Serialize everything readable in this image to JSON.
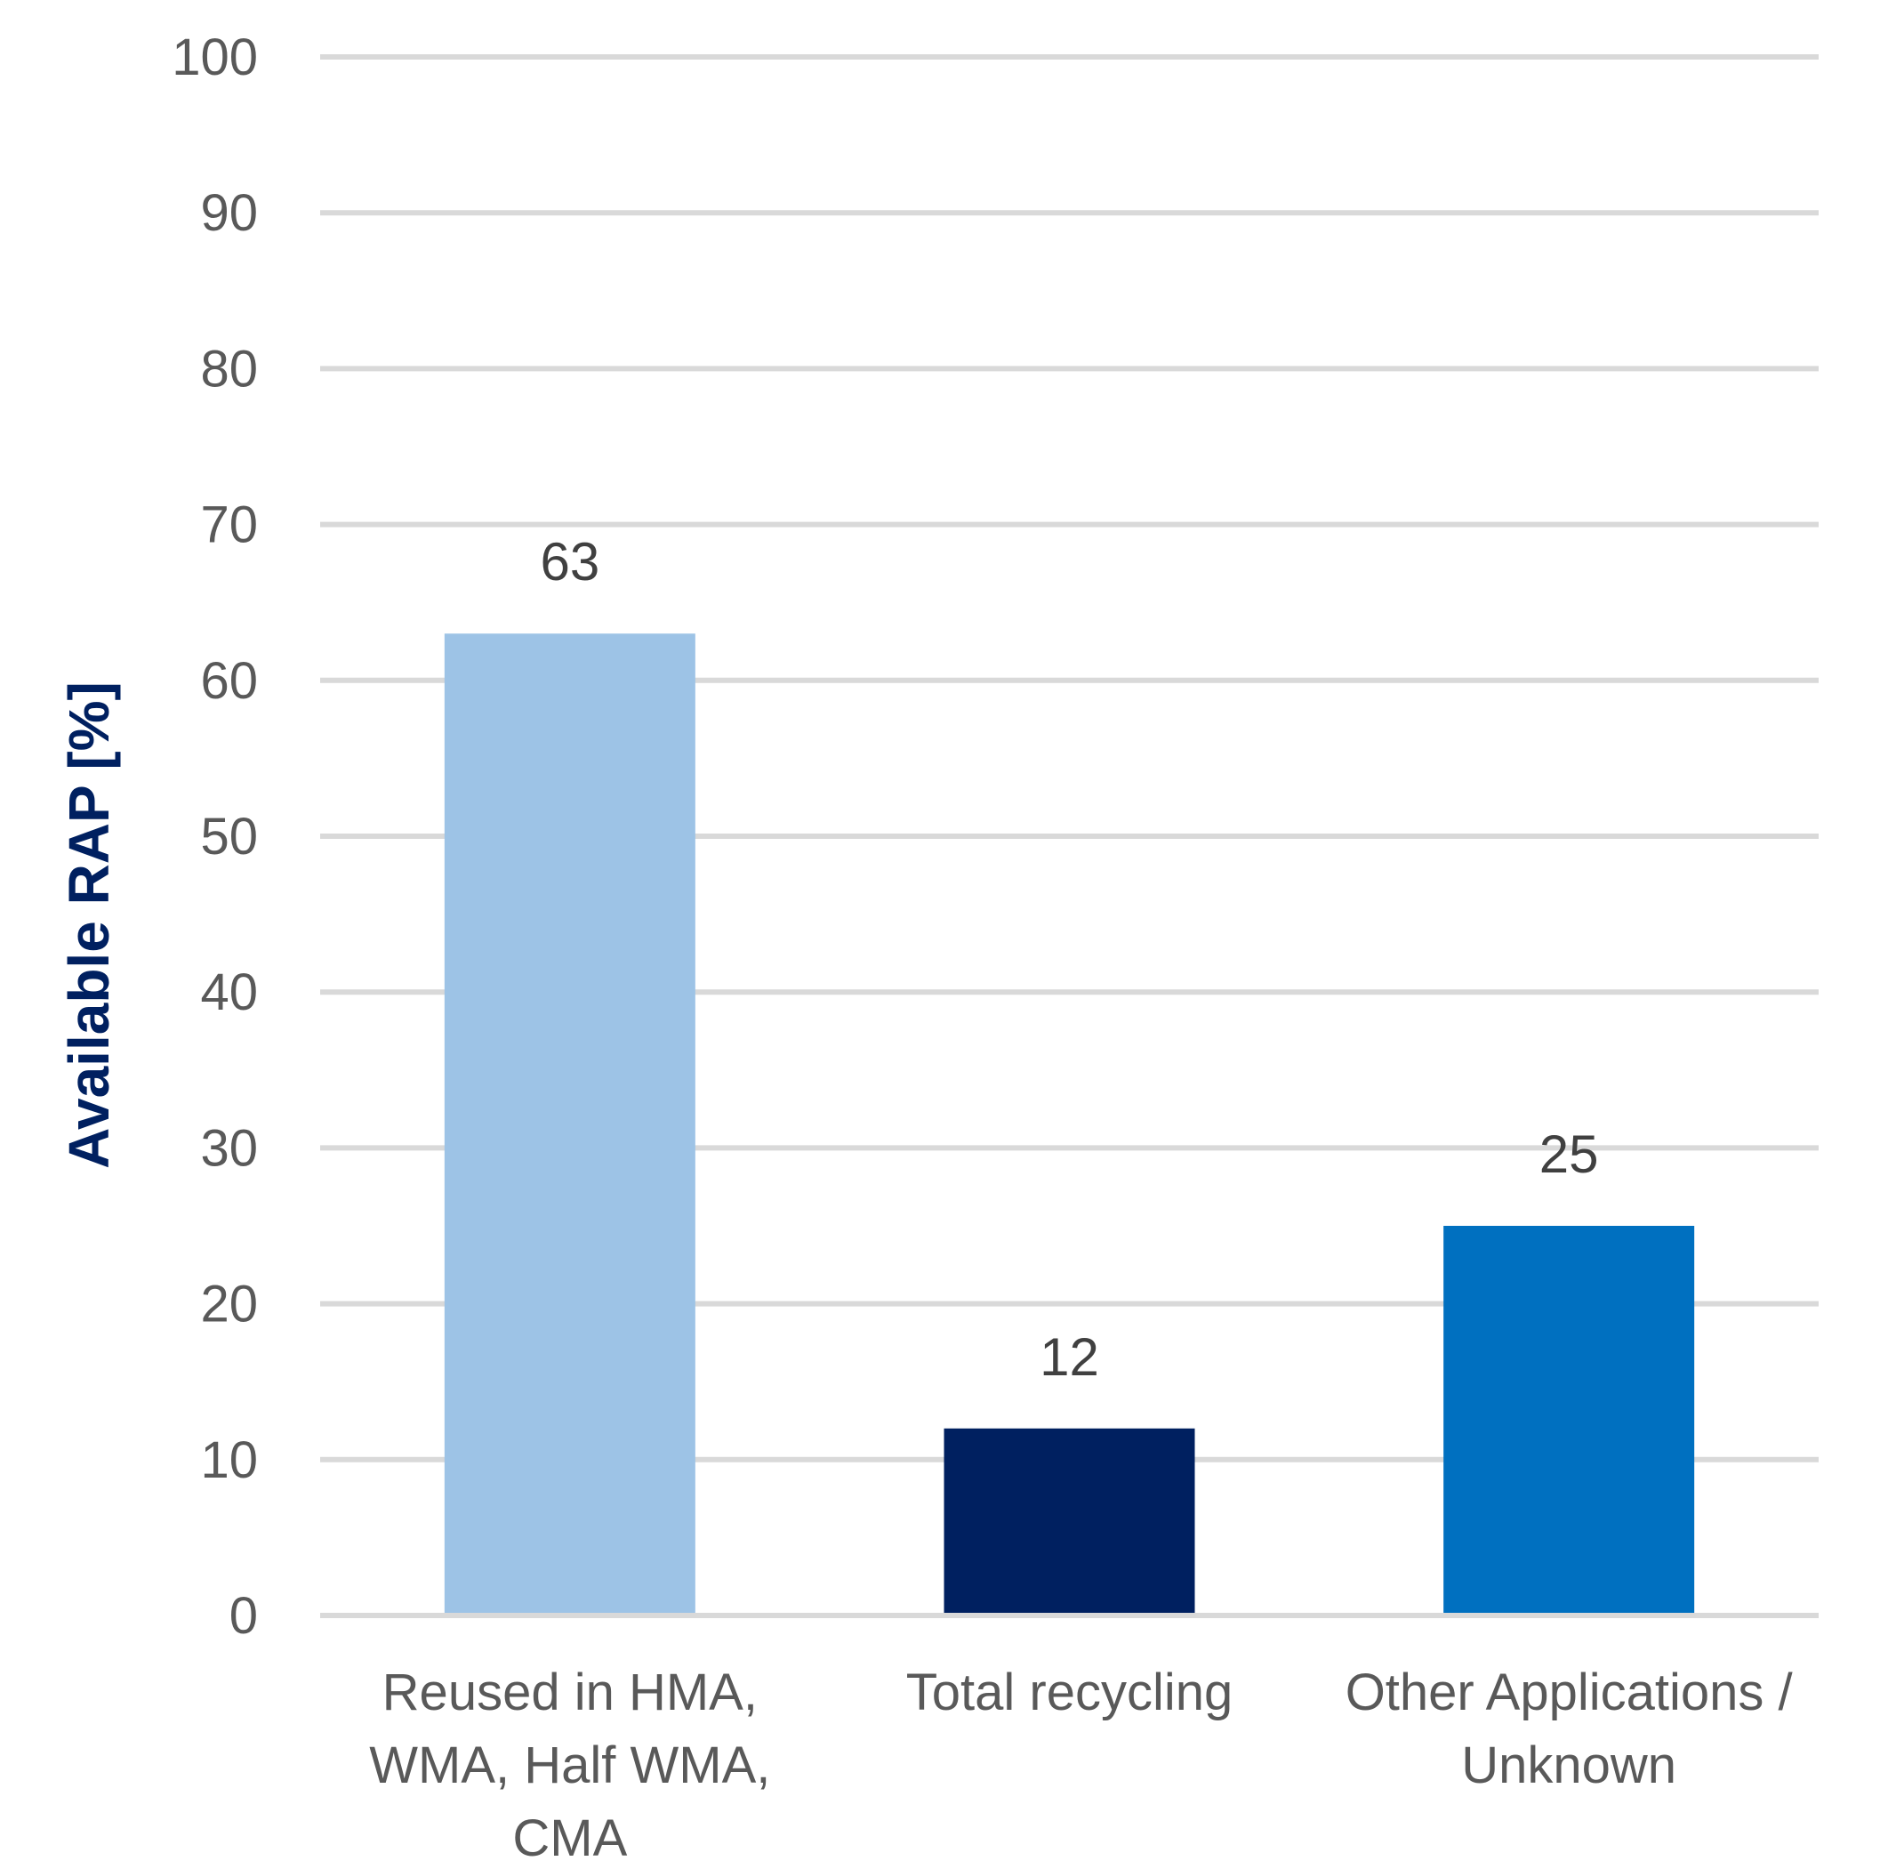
{
  "chart_data": {
    "type": "bar",
    "title": "",
    "xlabel": "",
    "ylabel": "Available RAP [%]",
    "ylim": [
      0,
      100
    ],
    "yticks": [
      0,
      10,
      20,
      30,
      40,
      50,
      60,
      70,
      80,
      90,
      100
    ],
    "grid": true,
    "legend": "none",
    "categories": [
      [
        "Reused in HMA,",
        "WMA, Half WMA,",
        "CMA"
      ],
      [
        "Total recycling"
      ],
      [
        "Other Applications /",
        "Unknown"
      ]
    ],
    "values": [
      63,
      12,
      25
    ],
    "data_labels": [
      "63",
      "12",
      "25"
    ],
    "colors": [
      "#9dc3e6",
      "#002060",
      "#0070c0"
    ]
  }
}
